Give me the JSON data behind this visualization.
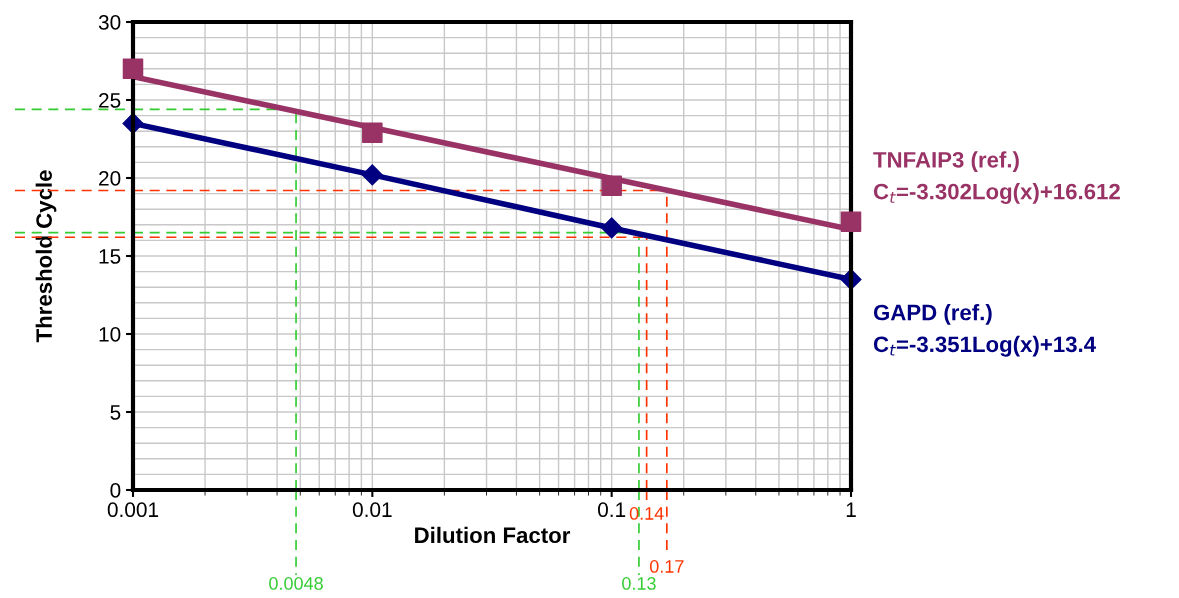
{
  "chart_data": {
    "type": "scatter",
    "xlabel": "Dilution Factor",
    "ylabel": "Threshold Cycle",
    "log": "x",
    "grid": true,
    "legend": false,
    "xlim": [
      0.001,
      1
    ],
    "xticks": [
      0.001,
      0.01,
      0.1,
      1
    ],
    "ylim": [
      0,
      30
    ],
    "yticks": [
      0,
      5,
      10,
      15,
      20,
      25,
      30
    ],
    "series": [
      {
        "name": "TNFAIP3 (ref.)",
        "marker": "square",
        "color": "#993366",
        "x": [
          0.001,
          0.01,
          0.1,
          1
        ],
        "values": [
          27.0,
          22.9,
          19.5,
          17.2
        ]
      },
      {
        "type": "line",
        "marker": "none",
        "color": "#993366",
        "x": [
          0.001,
          1
        ],
        "values": [
          26.5,
          16.7
        ]
      },
      {
        "name": "GAPD (ref.)",
        "type": "line",
        "marker": "diamond",
        "color": "#000080",
        "x": [
          0.001,
          0.01,
          0.1,
          1
        ],
        "values": [
          23.5,
          20.2,
          16.8,
          13.5
        ]
      }
    ],
    "annotations": [
      "C$_{t}$=-3.302Log(x)+16.612",
      "C$_{t}$=-3.351Log(x)+13.4"
    ],
    "ref_lines": [
      {
        "axis": "y",
        "value": 24.4,
        "color": "#33cc33",
        "line_style": "dashed"
      },
      {
        "axis": "x",
        "value": 0.0048,
        "label": "0.0048",
        "color": "#33cc33",
        "line_style": "dashed"
      },
      {
        "axis": "y",
        "value": 19.2,
        "color": "#ff3300",
        "line_style": "dashed"
      },
      {
        "axis": "x",
        "value": 0.17,
        "label": "0.17",
        "color": "#ff3300",
        "line_style": "dashed"
      },
      {
        "axis": "y",
        "value": 16.5,
        "color": "#33cc33",
        "line_style": "dashed"
      },
      {
        "axis": "x",
        "value": 0.13,
        "label": "0.13",
        "color": "#33cc33",
        "line_style": "dashed"
      },
      {
        "axis": "y",
        "value": 16.2,
        "color": "#ff3300",
        "line_style": "dashed"
      },
      {
        "axis": "x",
        "value": 0.14,
        "label": "0.14",
        "color": "#ff3300",
        "line_style": "dashed"
      }
    ]
  }
}
